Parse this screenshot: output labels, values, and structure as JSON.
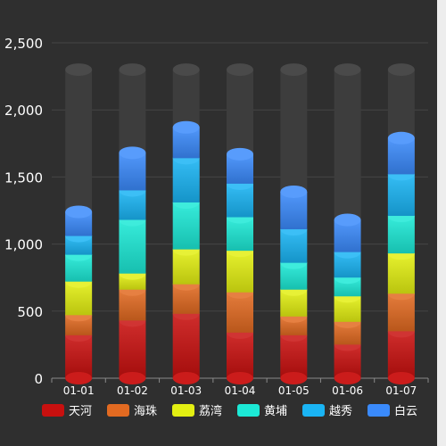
{
  "chart_data": {
    "type": "bar",
    "stacked": true,
    "style": "3d-cylinder",
    "categories": [
      "01-01",
      "01-02",
      "01-03",
      "01-04",
      "01-05",
      "01-06",
      "01-07"
    ],
    "ylim": [
      0,
      2500
    ],
    "yticks": [
      0,
      500,
      1000,
      1500,
      2000,
      2500
    ],
    "ytick_labels": [
      "0",
      "500",
      "1,000",
      "1,500",
      "2,000",
      "2,500"
    ],
    "background_max": 2300,
    "grid": true,
    "legend_position": "bottom",
    "series": [
      {
        "name": "天河",
        "color": "#c8100f",
        "values": [
          320,
          430,
          480,
          340,
          320,
          250,
          350
        ]
      },
      {
        "name": "海珠",
        "color": "#e26a21",
        "values": [
          150,
          230,
          220,
          300,
          140,
          170,
          280
        ]
      },
      {
        "name": "荔湾",
        "color": "#e3ef12",
        "values": [
          250,
          120,
          260,
          310,
          200,
          190,
          300
        ]
      },
      {
        "name": "黄埔",
        "color": "#1ce9d6",
        "values": [
          200,
          400,
          350,
          250,
          200,
          140,
          280
        ]
      },
      {
        "name": "越秀",
        "color": "#1ab4f4",
        "values": [
          140,
          220,
          330,
          250,
          250,
          190,
          310
        ]
      },
      {
        "name": "白云",
        "color": "#3a8afb",
        "values": [
          180,
          280,
          230,
          220,
          280,
          240,
          270
        ]
      }
    ],
    "title": "",
    "xlabel": "",
    "ylabel": ""
  }
}
